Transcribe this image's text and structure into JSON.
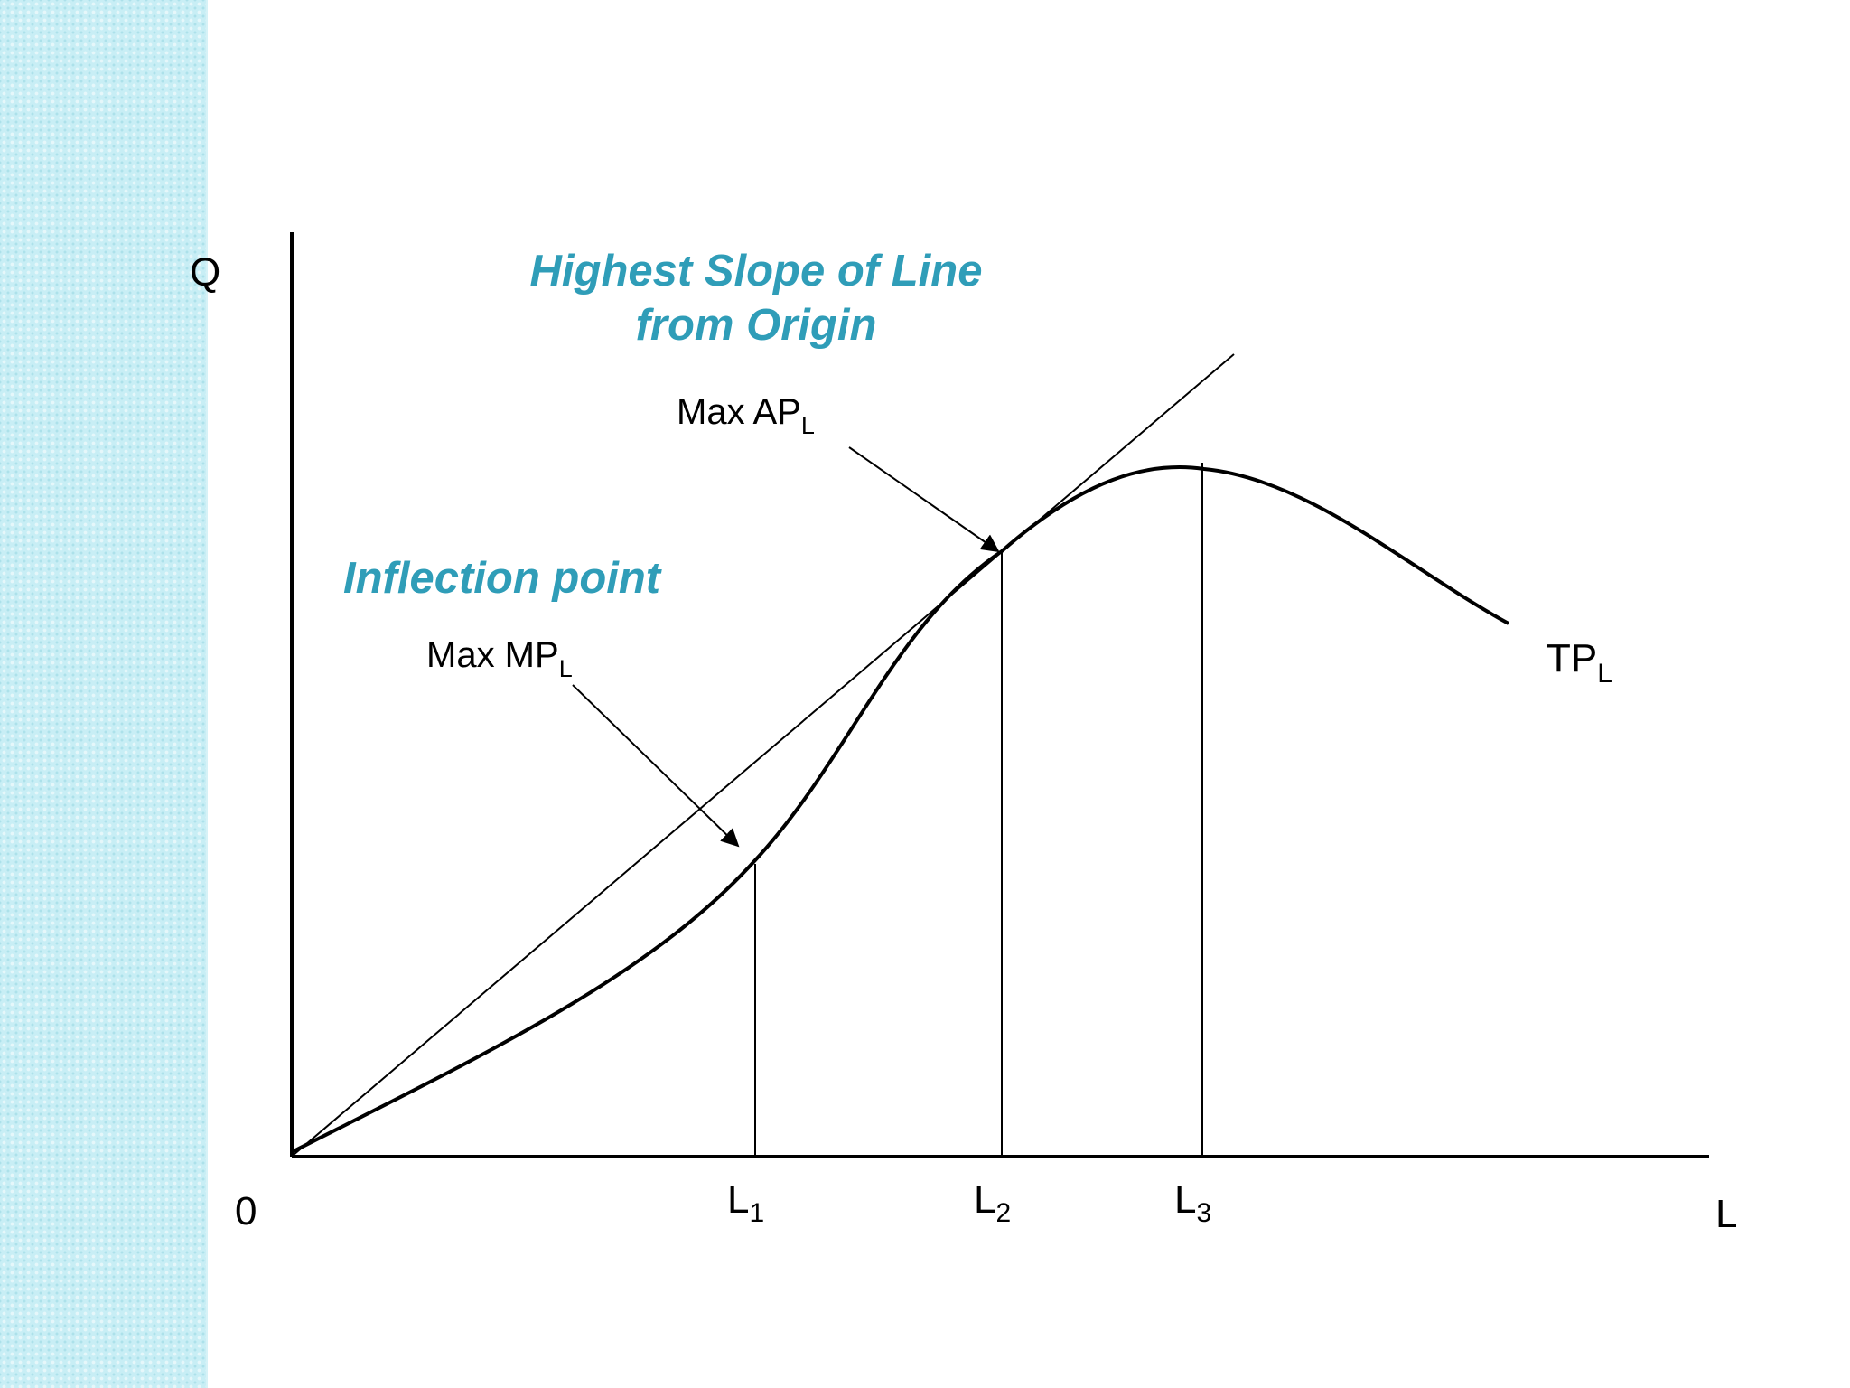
{
  "diagram": {
    "axes": {
      "y_label": "Q",
      "x_label": "L",
      "origin_label": "0"
    },
    "tick_labels": [
      {
        "base": "L",
        "sub": "1"
      },
      {
        "base": "L",
        "sub": "2"
      },
      {
        "base": "L",
        "sub": "3"
      }
    ],
    "curve_label": {
      "base": "TP",
      "sub": "L"
    },
    "annotations": {
      "highest_slope_line1": "Highest Slope of Line",
      "highest_slope_line2": "from Origin",
      "inflection": "Inflection point",
      "max_ap": {
        "base": "Max AP",
        "sub": "L"
      },
      "max_mp": {
        "base": "Max MP",
        "sub": "L"
      }
    },
    "colors": {
      "accent_text": "#2f9db8",
      "lines": "#000000",
      "side_band": "#c8eef5"
    }
  }
}
